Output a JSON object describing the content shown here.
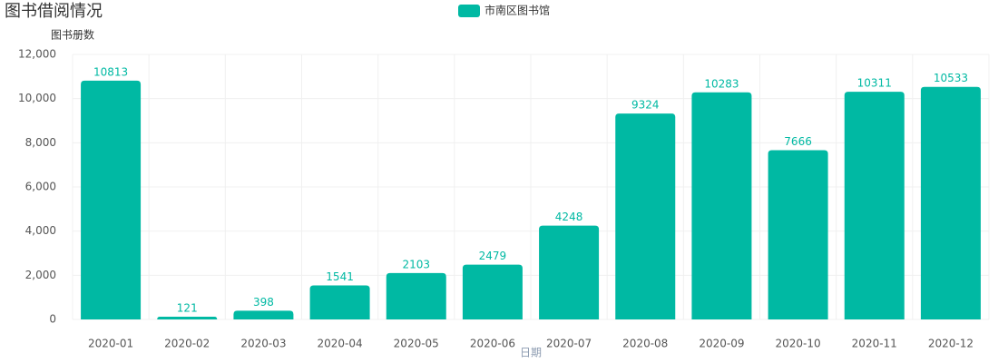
{
  "chart_data": {
    "type": "bar",
    "title": "图书借阅情况",
    "y_label": "图书册数",
    "x_label": "日期",
    "categories": [
      "2020-01",
      "2020-02",
      "2020-03",
      "2020-04",
      "2020-05",
      "2020-06",
      "2020-07",
      "2020-08",
      "2020-09",
      "2020-10",
      "2020-11",
      "2020-12"
    ],
    "series": [
      {
        "name": "市南区图书馆",
        "color": "#00b9a3",
        "values": [
          10813,
          121,
          398,
          1541,
          2103,
          2479,
          4248,
          9324,
          10283,
          7666,
          10311,
          10533
        ]
      }
    ],
    "ylim": [
      0,
      12000
    ],
    "yticks": [
      0,
      {
        "value": 2000,
        "label": "2,000"
      },
      {
        "value": 4000,
        "label": "4,000"
      },
      {
        "value": 6000,
        "label": "6,000"
      },
      {
        "value": 8000,
        "label": "8,000"
      },
      {
        "value": 10000,
        "label": "10,000"
      },
      {
        "value": 12000,
        "label": "12,000"
      }
    ],
    "grid": true
  }
}
